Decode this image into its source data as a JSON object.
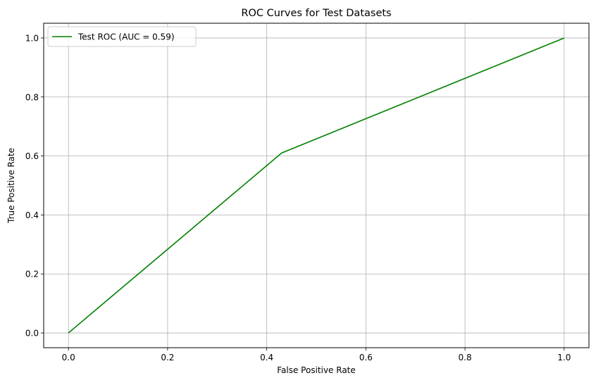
{
  "chart_data": {
    "type": "line",
    "title": "ROC Curves for Test Datasets",
    "xlabel": "False Positive Rate",
    "ylabel": "True Positive Rate",
    "xlim": [
      -0.05,
      1.05
    ],
    "ylim": [
      -0.05,
      1.05
    ],
    "xticks": [
      0.0,
      0.2,
      0.4,
      0.6,
      0.8,
      1.0
    ],
    "yticks": [
      0.0,
      0.2,
      0.4,
      0.6,
      0.8,
      1.0
    ],
    "xtick_labels": [
      "0.0",
      "0.2",
      "0.4",
      "0.6",
      "0.8",
      "1.0"
    ],
    "ytick_labels": [
      "0.0",
      "0.2",
      "0.4",
      "0.6",
      "0.8",
      "1.0"
    ],
    "grid": true,
    "legend_position": "top-left",
    "series": [
      {
        "name": "Test ROC (AUC = 0.59)",
        "color": "#008000",
        "x": [
          0.0,
          0.43,
          1.0
        ],
        "y": [
          0.0,
          0.61,
          1.0
        ]
      }
    ]
  }
}
